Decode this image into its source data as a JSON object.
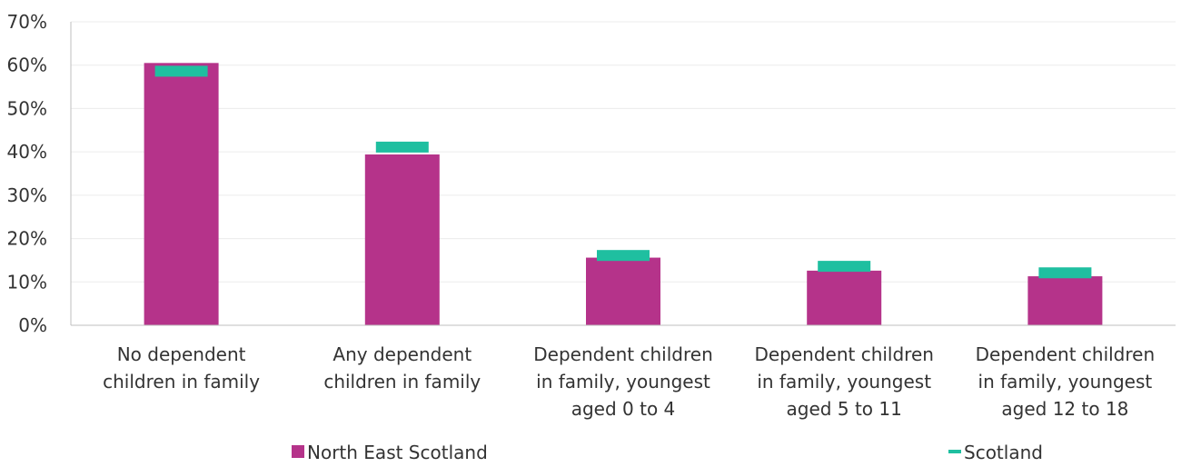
{
  "chart_data": {
    "type": "bar",
    "categories": [
      [
        "No dependent",
        "children in family"
      ],
      [
        "Any dependent",
        "children in family"
      ],
      [
        "Dependent children",
        "in family, youngest",
        "aged 0 to 4"
      ],
      [
        "Dependent children",
        "in family, youngest",
        "aged 5 to 11"
      ],
      [
        "Dependent children",
        "in family, youngest",
        "aged 12 to 18"
      ]
    ],
    "series": [
      {
        "name": "North East Scotland",
        "mark": "bar",
        "color": "#b5338a",
        "values": [
          60.5,
          39.4,
          15.6,
          12.6,
          11.3
        ]
      },
      {
        "name": "Scotland",
        "mark": "dash",
        "color": "#1fbfa0",
        "values": [
          58.6,
          41.1,
          16.1,
          13.6,
          12.1
        ]
      }
    ],
    "y_ticks": [
      "0%",
      "10%",
      "20%",
      "30%",
      "40%",
      "50%",
      "60%",
      "70%"
    ],
    "ylim": [
      0,
      70
    ],
    "grid": true,
    "legend_position": "bottom"
  }
}
